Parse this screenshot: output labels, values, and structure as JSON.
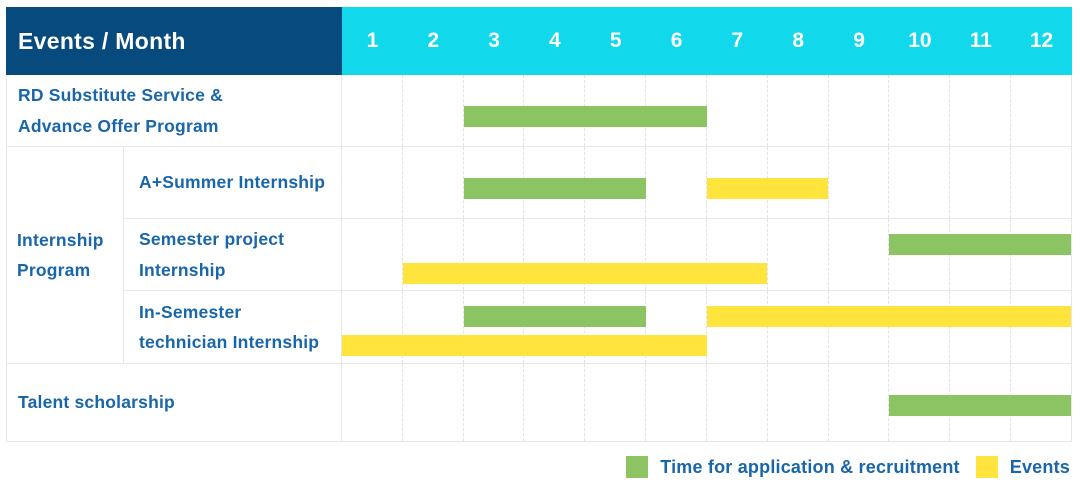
{
  "header": {
    "corner_label": "Events / Month",
    "months": [
      "1",
      "2",
      "3",
      "4",
      "5",
      "6",
      "7",
      "8",
      "9",
      "10",
      "11",
      "12"
    ]
  },
  "colors": {
    "header_navy": "#074a7d",
    "header_cyan": "#12d8ec",
    "label_blue": "#1966a9",
    "bar_green": "#8cc464",
    "bar_yellow": "#ffe43e",
    "grid_line": "#e7e7e7"
  },
  "legend": {
    "items": [
      {
        "series": "application",
        "label": "Time for application & recruitment",
        "color": "#8cc464"
      },
      {
        "series": "events",
        "label": "Events",
        "color": "#ffe43e"
      }
    ]
  },
  "chart_data": {
    "type": "table",
    "subtype": "gantt-timeline",
    "title": "Events / Month",
    "x_axis": {
      "label": "Month",
      "ticks": [
        "1",
        "2",
        "3",
        "4",
        "5",
        "6",
        "7",
        "8",
        "9",
        "10",
        "11",
        "12"
      ],
      "range": [
        1,
        12
      ]
    },
    "series_legend": {
      "application": "Time for application & recruitment",
      "events": "Events"
    },
    "rows": [
      {
        "label": "RD Substitute Service & Advance Offer Program",
        "lines": 1,
        "bars": [
          {
            "series": "application",
            "start_month": 3,
            "end_month": 6,
            "line": 0
          }
        ]
      },
      {
        "label": "Internship Program",
        "children": [
          {
            "label": "A+Summer Internship",
            "lines": 1,
            "bars": [
              {
                "series": "application",
                "start_month": 3,
                "end_month": 5,
                "line": 0
              },
              {
                "series": "events",
                "start_month": 7,
                "end_month": 8,
                "line": 0
              }
            ]
          },
          {
            "label": "Semester project Internship",
            "lines": 2,
            "bars": [
              {
                "series": "application",
                "start_month": 10,
                "end_month": 12,
                "line": 0
              },
              {
                "series": "events",
                "start_month": 2,
                "end_month": 7,
                "line": 1
              }
            ]
          },
          {
            "label": "In-Semester technician Internship",
            "lines": 2,
            "bars": [
              {
                "series": "application",
                "start_month": 3,
                "end_month": 5,
                "line": 0
              },
              {
                "series": "events",
                "start_month": 7,
                "end_month": 12,
                "line": 0
              },
              {
                "series": "events",
                "start_month": 1,
                "end_month": 6,
                "line": 1
              }
            ]
          }
        ]
      },
      {
        "label": "Talent scholarship",
        "lines": 1,
        "bars": [
          {
            "series": "application",
            "start_month": 10,
            "end_month": 12,
            "line": 0
          }
        ]
      }
    ]
  }
}
